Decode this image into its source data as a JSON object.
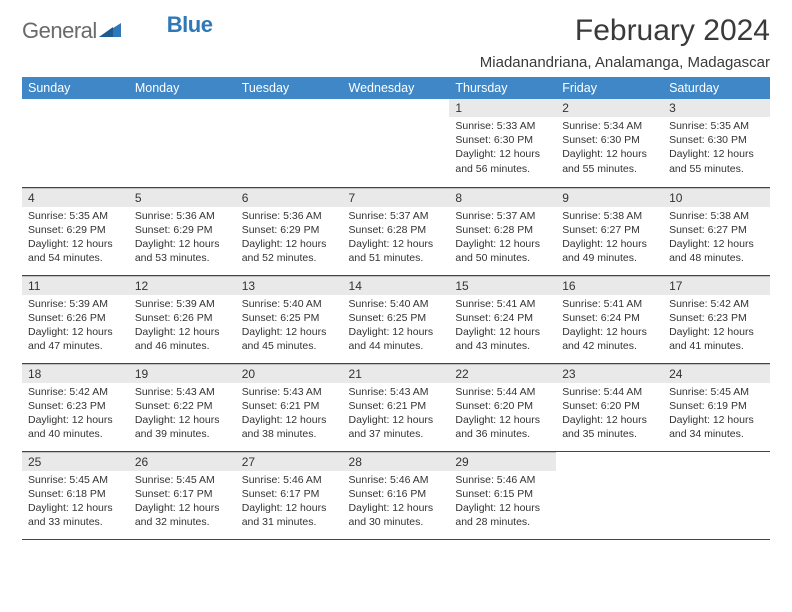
{
  "logo": {
    "text1": "General",
    "text2": "Blue"
  },
  "title": "February 2024",
  "subtitle": "Miadanandriana, Analamanga, Madagascar",
  "day_headers": [
    "Sunday",
    "Monday",
    "Tuesday",
    "Wednesday",
    "Thursday",
    "Friday",
    "Saturday"
  ],
  "colors": {
    "header_bg": "#3f87c6",
    "header_fg": "#ffffff",
    "daynum_bg": "#e9e9e9",
    "rule": "#2a4a6a",
    "logo_gray": "#6a6a6a",
    "logo_blue": "#2f78b7"
  },
  "weeks": [
    [
      {
        "n": "",
        "sunrise": "",
        "sunset": "",
        "daylight": ""
      },
      {
        "n": "",
        "sunrise": "",
        "sunset": "",
        "daylight": ""
      },
      {
        "n": "",
        "sunrise": "",
        "sunset": "",
        "daylight": ""
      },
      {
        "n": "",
        "sunrise": "",
        "sunset": "",
        "daylight": ""
      },
      {
        "n": "1",
        "sunrise": "Sunrise: 5:33 AM",
        "sunset": "Sunset: 6:30 PM",
        "daylight": "Daylight: 12 hours and 56 minutes."
      },
      {
        "n": "2",
        "sunrise": "Sunrise: 5:34 AM",
        "sunset": "Sunset: 6:30 PM",
        "daylight": "Daylight: 12 hours and 55 minutes."
      },
      {
        "n": "3",
        "sunrise": "Sunrise: 5:35 AM",
        "sunset": "Sunset: 6:30 PM",
        "daylight": "Daylight: 12 hours and 55 minutes."
      }
    ],
    [
      {
        "n": "4",
        "sunrise": "Sunrise: 5:35 AM",
        "sunset": "Sunset: 6:29 PM",
        "daylight": "Daylight: 12 hours and 54 minutes."
      },
      {
        "n": "5",
        "sunrise": "Sunrise: 5:36 AM",
        "sunset": "Sunset: 6:29 PM",
        "daylight": "Daylight: 12 hours and 53 minutes."
      },
      {
        "n": "6",
        "sunrise": "Sunrise: 5:36 AM",
        "sunset": "Sunset: 6:29 PM",
        "daylight": "Daylight: 12 hours and 52 minutes."
      },
      {
        "n": "7",
        "sunrise": "Sunrise: 5:37 AM",
        "sunset": "Sunset: 6:28 PM",
        "daylight": "Daylight: 12 hours and 51 minutes."
      },
      {
        "n": "8",
        "sunrise": "Sunrise: 5:37 AM",
        "sunset": "Sunset: 6:28 PM",
        "daylight": "Daylight: 12 hours and 50 minutes."
      },
      {
        "n": "9",
        "sunrise": "Sunrise: 5:38 AM",
        "sunset": "Sunset: 6:27 PM",
        "daylight": "Daylight: 12 hours and 49 minutes."
      },
      {
        "n": "10",
        "sunrise": "Sunrise: 5:38 AM",
        "sunset": "Sunset: 6:27 PM",
        "daylight": "Daylight: 12 hours and 48 minutes."
      }
    ],
    [
      {
        "n": "11",
        "sunrise": "Sunrise: 5:39 AM",
        "sunset": "Sunset: 6:26 PM",
        "daylight": "Daylight: 12 hours and 47 minutes."
      },
      {
        "n": "12",
        "sunrise": "Sunrise: 5:39 AM",
        "sunset": "Sunset: 6:26 PM",
        "daylight": "Daylight: 12 hours and 46 minutes."
      },
      {
        "n": "13",
        "sunrise": "Sunrise: 5:40 AM",
        "sunset": "Sunset: 6:25 PM",
        "daylight": "Daylight: 12 hours and 45 minutes."
      },
      {
        "n": "14",
        "sunrise": "Sunrise: 5:40 AM",
        "sunset": "Sunset: 6:25 PM",
        "daylight": "Daylight: 12 hours and 44 minutes."
      },
      {
        "n": "15",
        "sunrise": "Sunrise: 5:41 AM",
        "sunset": "Sunset: 6:24 PM",
        "daylight": "Daylight: 12 hours and 43 minutes."
      },
      {
        "n": "16",
        "sunrise": "Sunrise: 5:41 AM",
        "sunset": "Sunset: 6:24 PM",
        "daylight": "Daylight: 12 hours and 42 minutes."
      },
      {
        "n": "17",
        "sunrise": "Sunrise: 5:42 AM",
        "sunset": "Sunset: 6:23 PM",
        "daylight": "Daylight: 12 hours and 41 minutes."
      }
    ],
    [
      {
        "n": "18",
        "sunrise": "Sunrise: 5:42 AM",
        "sunset": "Sunset: 6:23 PM",
        "daylight": "Daylight: 12 hours and 40 minutes."
      },
      {
        "n": "19",
        "sunrise": "Sunrise: 5:43 AM",
        "sunset": "Sunset: 6:22 PM",
        "daylight": "Daylight: 12 hours and 39 minutes."
      },
      {
        "n": "20",
        "sunrise": "Sunrise: 5:43 AM",
        "sunset": "Sunset: 6:21 PM",
        "daylight": "Daylight: 12 hours and 38 minutes."
      },
      {
        "n": "21",
        "sunrise": "Sunrise: 5:43 AM",
        "sunset": "Sunset: 6:21 PM",
        "daylight": "Daylight: 12 hours and 37 minutes."
      },
      {
        "n": "22",
        "sunrise": "Sunrise: 5:44 AM",
        "sunset": "Sunset: 6:20 PM",
        "daylight": "Daylight: 12 hours and 36 minutes."
      },
      {
        "n": "23",
        "sunrise": "Sunrise: 5:44 AM",
        "sunset": "Sunset: 6:20 PM",
        "daylight": "Daylight: 12 hours and 35 minutes."
      },
      {
        "n": "24",
        "sunrise": "Sunrise: 5:45 AM",
        "sunset": "Sunset: 6:19 PM",
        "daylight": "Daylight: 12 hours and 34 minutes."
      }
    ],
    [
      {
        "n": "25",
        "sunrise": "Sunrise: 5:45 AM",
        "sunset": "Sunset: 6:18 PM",
        "daylight": "Daylight: 12 hours and 33 minutes."
      },
      {
        "n": "26",
        "sunrise": "Sunrise: 5:45 AM",
        "sunset": "Sunset: 6:17 PM",
        "daylight": "Daylight: 12 hours and 32 minutes."
      },
      {
        "n": "27",
        "sunrise": "Sunrise: 5:46 AM",
        "sunset": "Sunset: 6:17 PM",
        "daylight": "Daylight: 12 hours and 31 minutes."
      },
      {
        "n": "28",
        "sunrise": "Sunrise: 5:46 AM",
        "sunset": "Sunset: 6:16 PM",
        "daylight": "Daylight: 12 hours and 30 minutes."
      },
      {
        "n": "29",
        "sunrise": "Sunrise: 5:46 AM",
        "sunset": "Sunset: 6:15 PM",
        "daylight": "Daylight: 12 hours and 28 minutes."
      },
      {
        "n": "",
        "sunrise": "",
        "sunset": "",
        "daylight": ""
      },
      {
        "n": "",
        "sunrise": "",
        "sunset": "",
        "daylight": ""
      }
    ]
  ]
}
